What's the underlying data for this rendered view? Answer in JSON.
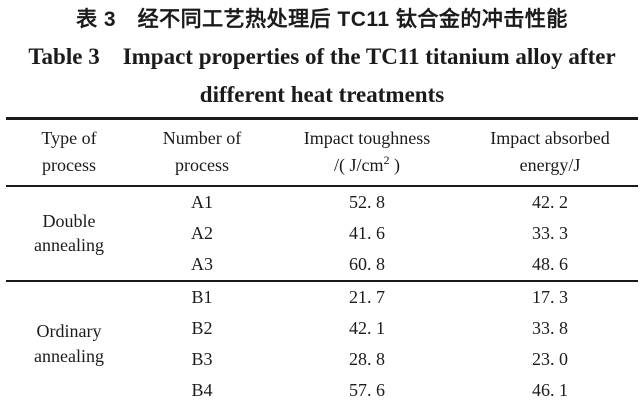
{
  "colors": {
    "text": "#1b1b1b",
    "rule": "#1a1a1a",
    "background": "#ffffff"
  },
  "caption": {
    "chinese": "表 3　经不同工艺热处理后 TC11 钛合金的冲击性能",
    "english_line1": "Table 3 Impact properties of the TC11 titanium alloy after",
    "english_line2": "different heat treatments"
  },
  "table": {
    "header": {
      "c1": {
        "line1": "Type of",
        "line2": "process"
      },
      "c2": {
        "line1": "Number of",
        "line2": "process"
      },
      "c3": {
        "line1": "Impact toughness",
        "line2_pre": "/( J/cm",
        "line2_sup": "2",
        "line2_post": " )"
      },
      "c4": {
        "line1": "Impact absorbed",
        "line2": "energy/J"
      }
    },
    "groups": [
      {
        "type": "Double annealing",
        "rows": [
          {
            "id": "A1",
            "toughness": "52. 8",
            "energy": "42. 2"
          },
          {
            "id": "A2",
            "toughness": "41. 6",
            "energy": "33. 3"
          },
          {
            "id": "A3",
            "toughness": "60. 8",
            "energy": "48. 6"
          }
        ]
      },
      {
        "type": "Ordinary annealing",
        "rows": [
          {
            "id": "B1",
            "toughness": "21. 7",
            "energy": "17. 3"
          },
          {
            "id": "B2",
            "toughness": "42. 1",
            "energy": "33. 8"
          },
          {
            "id": "B3",
            "toughness": "28. 8",
            "energy": "23. 0"
          },
          {
            "id": "B4",
            "toughness": "57. 6",
            "energy": "46. 1"
          }
        ]
      }
    ]
  }
}
